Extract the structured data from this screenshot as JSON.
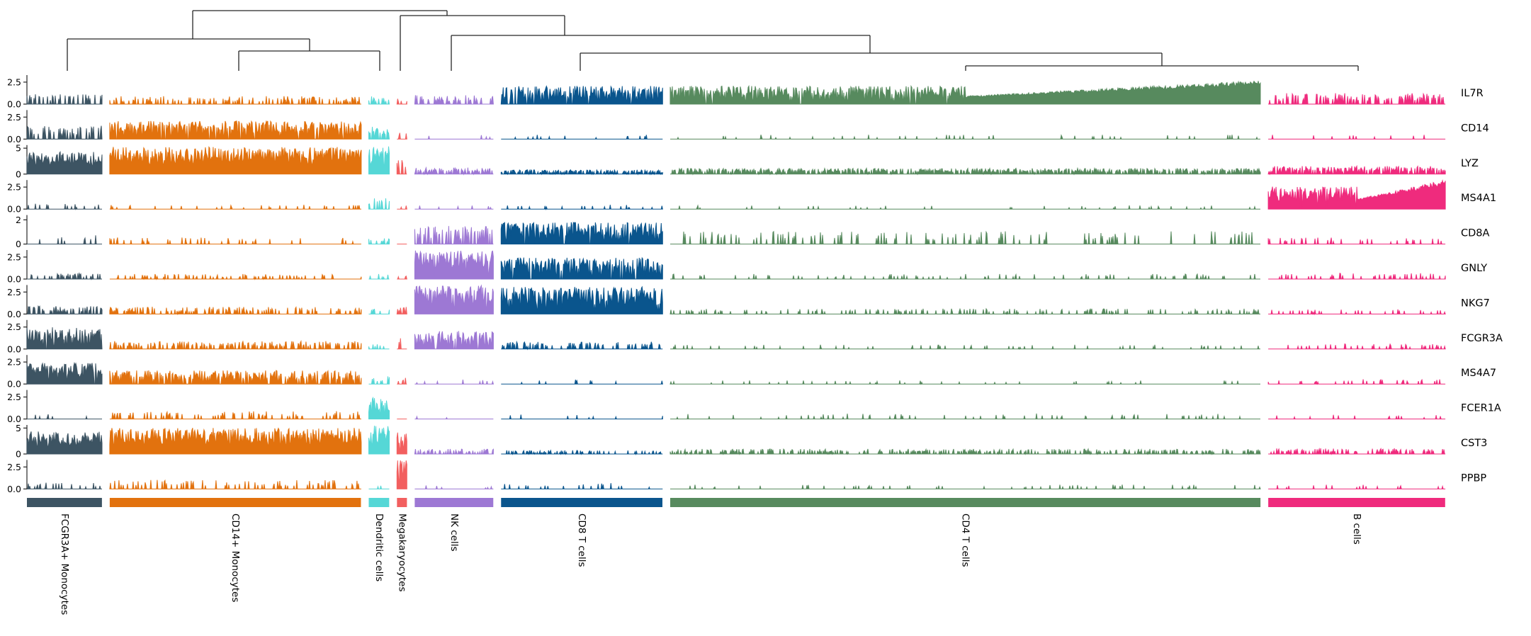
{
  "figure": {
    "kind": "tracksplot",
    "description": "Gene expression tracks per cell across annotated cell-type clusters, with hierarchical-clustering dendrogram on top and cluster color bars plus rotated cluster labels at the bottom."
  },
  "chart_data": {
    "type": "area",
    "subtype": "tracksplot",
    "genes": [
      {
        "name": "IL7R",
        "ticks": [
          {
            "label": "2.5",
            "value": 2.5
          },
          {
            "label": "0.0",
            "value": 0
          }
        ],
        "vmax": 3.3
      },
      {
        "name": "CD14",
        "ticks": [
          {
            "label": "2.5",
            "value": 2.5
          },
          {
            "label": "0.0",
            "value": 0
          }
        ],
        "vmax": 3.3
      },
      {
        "name": "LYZ",
        "ticks": [
          {
            "label": "5",
            "value": 5
          },
          {
            "label": "0",
            "value": 0
          }
        ],
        "vmax": 5.6
      },
      {
        "name": "MS4A1",
        "ticks": [
          {
            "label": "2.5",
            "value": 2.5
          },
          {
            "label": "0.0",
            "value": 0
          }
        ],
        "vmax": 3.3
      },
      {
        "name": "CD8A",
        "ticks": [
          {
            "label": "2",
            "value": 2
          },
          {
            "label": "0",
            "value": 0
          }
        ],
        "vmax": 2.4
      },
      {
        "name": "GNLY",
        "ticks": [
          {
            "label": "2.5",
            "value": 2.5
          },
          {
            "label": "0.0",
            "value": 0
          }
        ],
        "vmax": 3.3
      },
      {
        "name": "NKG7",
        "ticks": [
          {
            "label": "2.5",
            "value": 2.5
          },
          {
            "label": "0.0",
            "value": 0
          }
        ],
        "vmax": 3.3
      },
      {
        "name": "FCGR3A",
        "ticks": [
          {
            "label": "2.5",
            "value": 2.5
          },
          {
            "label": "0.0",
            "value": 0
          }
        ],
        "vmax": 3.3
      },
      {
        "name": "MS4A7",
        "ticks": [
          {
            "label": "2.5",
            "value": 2.5
          },
          {
            "label": "0.0",
            "value": 0
          }
        ],
        "vmax": 3.3
      },
      {
        "name": "FCER1A",
        "ticks": [
          {
            "label": "2.5",
            "value": 2.5
          },
          {
            "label": "0.0",
            "value": 0
          }
        ],
        "vmax": 3.3
      },
      {
        "name": "CST3",
        "ticks": [
          {
            "label": "5",
            "value": 5
          },
          {
            "label": "0",
            "value": 0
          }
        ],
        "vmax": 5.6
      },
      {
        "name": "PPBP",
        "ticks": [
          {
            "label": "2.5",
            "value": 2.5
          },
          {
            "label": "0.0",
            "value": 0
          }
        ],
        "vmax": 3.3
      }
    ],
    "groups": [
      {
        "name": "FCGR3A+ Monocytes",
        "color": "#3d5463",
        "fraction": 0.055
      },
      {
        "name": "CD14+ Monocytes",
        "color": "#e2720e",
        "fraction": 0.1842
      },
      {
        "name": "Dendritic cells",
        "color": "#55d7d6",
        "fraction": 0.015
      },
      {
        "name": "Megakaryocytes",
        "color": "#f25f5f",
        "fraction": 0.0073
      },
      {
        "name": "NK cells",
        "color": "#9d78d4",
        "fraction": 0.0576
      },
      {
        "name": "CD8 T cells",
        "color": "#0a558d",
        "fraction": 0.1183
      },
      {
        "name": "CD4 T cells",
        "color": "#578a5e",
        "fraction": 0.4328
      },
      {
        "name": "B cells",
        "color": "#ef2b7d",
        "fraction": 0.1297
      }
    ],
    "expression_legend": "per gene (rows) x group (cols): [fraction_of_cells_expressing, typical_level_fraction_of_axis, ramp_flag]",
    "expression": [
      [
        [
          0.3,
          0.28
        ],
        [
          0.28,
          0.22
        ],
        [
          0.3,
          0.22
        ],
        [
          0.2,
          0.18
        ],
        [
          0.35,
          0.25
        ],
        [
          0.8,
          0.5
        ],
        [
          0.85,
          0.5,
          1
        ],
        [
          0.35,
          0.3
        ]
      ],
      [
        [
          0.35,
          0.38
        ],
        [
          0.78,
          0.5
        ],
        [
          0.55,
          0.35
        ],
        [
          0.25,
          0.2
        ],
        [
          0.04,
          0.12
        ],
        [
          0.05,
          0.12
        ],
        [
          0.06,
          0.12
        ],
        [
          0.04,
          0.12
        ]
      ],
      [
        [
          1.0,
          0.62
        ],
        [
          1.0,
          0.75
        ],
        [
          1.0,
          0.78
        ],
        [
          0.6,
          0.4
        ],
        [
          0.55,
          0.18
        ],
        [
          0.5,
          0.12
        ],
        [
          0.6,
          0.16
        ],
        [
          0.65,
          0.22
        ]
      ],
      [
        [
          0.1,
          0.15
        ],
        [
          0.08,
          0.12
        ],
        [
          0.3,
          0.3
        ],
        [
          0.1,
          0.12
        ],
        [
          0.04,
          0.1
        ],
        [
          0.06,
          0.12
        ],
        [
          0.05,
          0.1
        ],
        [
          0.95,
          0.62,
          1
        ]
      ],
      [
        [
          0.15,
          0.25
        ],
        [
          0.1,
          0.18
        ],
        [
          0.12,
          0.18
        ],
        [
          0.1,
          0.12
        ],
        [
          0.5,
          0.5
        ],
        [
          0.85,
          0.6
        ],
        [
          0.12,
          0.35
        ],
        [
          0.1,
          0.18
        ]
      ],
      [
        [
          0.3,
          0.16
        ],
        [
          0.22,
          0.14
        ],
        [
          0.2,
          0.14
        ],
        [
          0.2,
          0.12
        ],
        [
          0.97,
          0.8
        ],
        [
          0.8,
          0.6
        ],
        [
          0.12,
          0.14
        ],
        [
          0.15,
          0.16
        ]
      ],
      [
        [
          0.4,
          0.22
        ],
        [
          0.3,
          0.2
        ],
        [
          0.25,
          0.16
        ],
        [
          0.3,
          0.2
        ],
        [
          0.98,
          0.8
        ],
        [
          0.92,
          0.75
        ],
        [
          0.18,
          0.15
        ],
        [
          0.12,
          0.13
        ]
      ],
      [
        [
          0.92,
          0.6
        ],
        [
          0.4,
          0.22
        ],
        [
          0.25,
          0.18
        ],
        [
          0.3,
          0.3
        ],
        [
          0.8,
          0.5
        ],
        [
          0.3,
          0.2
        ],
        [
          0.08,
          0.12
        ],
        [
          0.12,
          0.14
        ]
      ],
      [
        [
          0.92,
          0.58
        ],
        [
          0.65,
          0.38
        ],
        [
          0.35,
          0.22
        ],
        [
          0.25,
          0.2
        ],
        [
          0.06,
          0.12
        ],
        [
          0.05,
          0.12
        ],
        [
          0.06,
          0.1
        ],
        [
          0.12,
          0.13
        ]
      ],
      [
        [
          0.08,
          0.15
        ],
        [
          0.18,
          0.22
        ],
        [
          0.92,
          0.6
        ],
        [
          0.06,
          0.1
        ],
        [
          0.03,
          0.1
        ],
        [
          0.04,
          0.12
        ],
        [
          0.08,
          0.15
        ],
        [
          0.05,
          0.12
        ]
      ],
      [
        [
          1.0,
          0.62
        ],
        [
          1.0,
          0.72
        ],
        [
          1.0,
          0.78
        ],
        [
          0.95,
          0.6
        ],
        [
          0.4,
          0.14
        ],
        [
          0.25,
          0.1
        ],
        [
          0.35,
          0.14
        ],
        [
          0.35,
          0.16
        ]
      ],
      [
        [
          0.18,
          0.18
        ],
        [
          0.18,
          0.25
        ],
        [
          0.08,
          0.12
        ],
        [
          0.97,
          0.88
        ],
        [
          0.05,
          0.1
        ],
        [
          0.1,
          0.16
        ],
        [
          0.07,
          0.12
        ],
        [
          0.08,
          0.12
        ]
      ]
    ],
    "dendrogram": {
      "line_color": "#262626",
      "segments": [
        [
          272,
          15,
          631,
          15
        ],
        [
          272,
          15,
          272,
          55
        ],
        [
          631,
          15,
          631,
          22
        ],
        [
          95,
          55,
          437,
          55
        ],
        [
          95,
          55,
          95,
          100
        ],
        [
          437,
          55,
          437,
          72
        ],
        [
          337,
          72,
          536,
          72
        ],
        [
          337,
          72,
          337,
          100
        ],
        [
          536,
          72,
          536,
          100
        ],
        [
          565,
          22,
          797,
          22
        ],
        [
          565,
          22,
          565,
          100
        ],
        [
          797,
          22,
          797,
          50
        ],
        [
          637,
          50,
          1228,
          50
        ],
        [
          637,
          50,
          637,
          100
        ],
        [
          1228,
          50,
          1228,
          75
        ],
        [
          819,
          75,
          1640,
          75
        ],
        [
          819,
          75,
          819,
          100
        ],
        [
          1640,
          75,
          1640,
          93
        ],
        [
          1363,
          93,
          1917,
          93
        ],
        [
          1363,
          93,
          1363,
          100
        ],
        [
          1917,
          93,
          1917,
          100
        ]
      ]
    },
    "axis_color": "#262626",
    "legend_position": "none",
    "grid": false
  }
}
